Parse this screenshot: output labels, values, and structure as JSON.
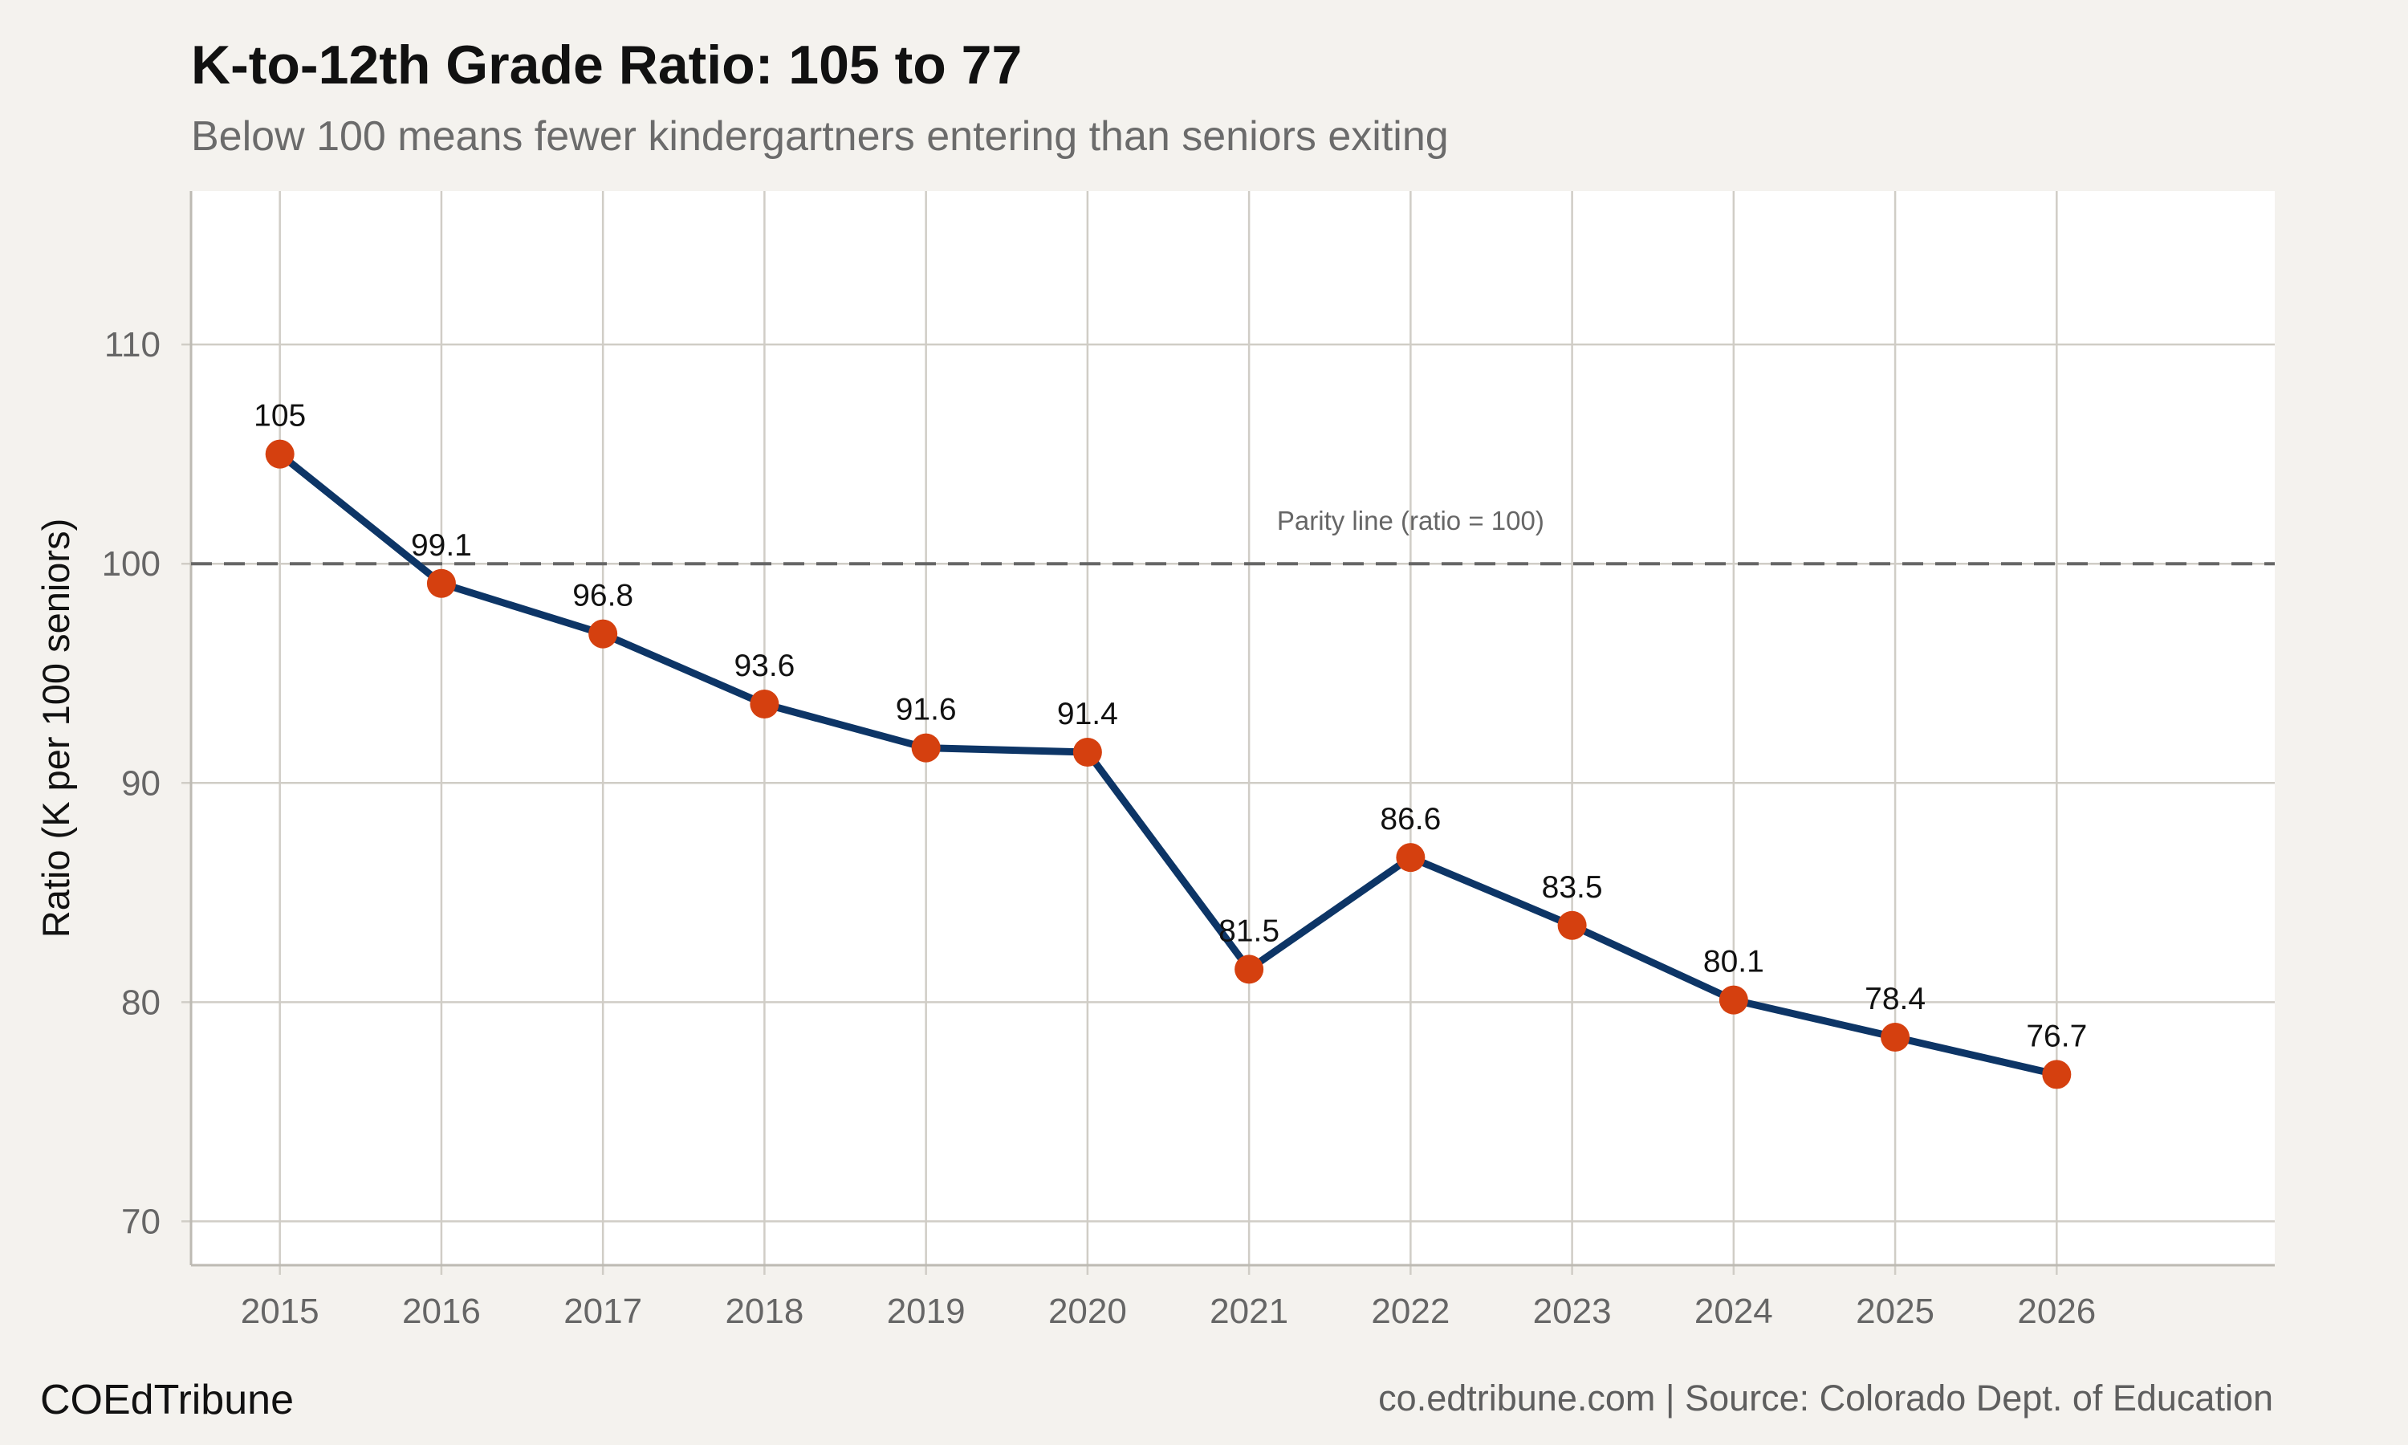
{
  "header": {
    "title": "K-to-12th Grade Ratio: 105 to 77",
    "subtitle": "Below 100 means fewer kindergartners entering than seniors exiting"
  },
  "footer": {
    "brand": "COEdTribune",
    "source": "co.edtribune.com | Source: Colorado Dept. of Education"
  },
  "colors": {
    "background": "#f4f2ee",
    "panel": "#ffffff",
    "grid": "#d0cdc6",
    "line": "#0d3566",
    "point": "#d5400f",
    "parity": "#666666"
  },
  "chart_data": {
    "type": "line",
    "title": "K-to-12th Grade Ratio: 105 to 77",
    "subtitle": "Below 100 means fewer kindergartners entering than seniors exiting",
    "xlabel": "",
    "ylabel": "Ratio (K per 100 seniors)",
    "x": [
      2015,
      2016,
      2017,
      2018,
      2019,
      2020,
      2021,
      2022,
      2023,
      2024,
      2025,
      2026
    ],
    "series": [
      {
        "values": [
          105,
          99.1,
          96.8,
          93.6,
          91.6,
          91.4,
          81.5,
          86.6,
          83.5,
          80.1,
          78.4,
          76.7
        ],
        "labels": [
          "105",
          "99.1",
          "96.8",
          "93.6",
          "91.6",
          "91.4",
          "81.5",
          "86.6",
          "83.5",
          "80.1",
          "78.4",
          "76.7"
        ]
      }
    ],
    "ylim": [
      68,
      117
    ],
    "xlim": [
      2014.45,
      2027.35
    ],
    "yticks": [
      70,
      80,
      90,
      100,
      110
    ],
    "reference_line": {
      "value": 100,
      "style": "dashed",
      "label": "Parity line (ratio = 100)",
      "label_x": 2022
    },
    "grid": true,
    "legend": "none"
  }
}
